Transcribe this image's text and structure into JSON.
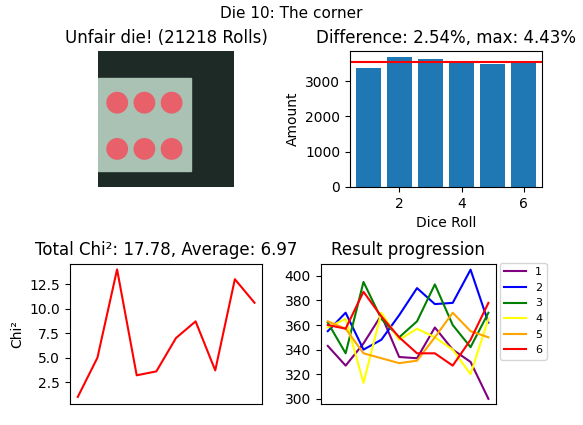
{
  "title": "Die 10: The corner",
  "chart_data": [
    {
      "type": "image",
      "title": "Unfair die! (21218 Rolls)"
    },
    {
      "type": "bar",
      "title": "Difference: 2.54%, max: 4.43%",
      "x": [
        1,
        2,
        3,
        4,
        5,
        6
      ],
      "values": [
        3380,
        3680,
        3620,
        3500,
        3480,
        3540
      ],
      "color": "#1f77b4",
      "reference_value": 3536,
      "reference_color": "red",
      "x_label": "Dice Roll",
      "y_label": "Amount",
      "xlim": [
        0.4,
        6.6
      ],
      "xticks": [
        2,
        4,
        6
      ],
      "ylim": [
        0,
        3850
      ],
      "yticks": [
        0,
        1000,
        2000,
        3000
      ]
    },
    {
      "type": "line",
      "title": "Total Chi²: 17.78, Average: 6.97",
      "y_label": "Chi²",
      "x": [
        0,
        1,
        2,
        3,
        4,
        5,
        6,
        7,
        8,
        9
      ],
      "values": [
        1.0,
        5.0,
        14.0,
        3.2,
        3.6,
        7.0,
        8.7,
        3.7,
        13.0,
        10.6
      ],
      "color": "red",
      "xlim": [
        -0.4,
        9.4
      ],
      "ylim": [
        0.3,
        14.6
      ],
      "yticks": [
        2.5,
        5.0,
        7.5,
        10.0,
        12.5
      ],
      "tick_labels": "y"
    },
    {
      "type": "line",
      "title": "Result progression",
      "x": [
        0,
        1,
        2,
        3,
        4,
        5,
        6,
        7,
        8,
        9
      ],
      "xlim": [
        -0.4,
        9.4
      ],
      "ylim": [
        296,
        410
      ],
      "yticks": [
        300,
        320,
        340,
        360,
        380,
        400
      ],
      "tick_labels": "y",
      "legend": "upper left",
      "series": [
        {
          "name": "1",
          "color": "purple",
          "values": [
            343,
            327,
            345,
            368,
            334,
            333,
            358,
            340,
            330,
            300
          ]
        },
        {
          "name": "2",
          "color": "blue",
          "values": [
            355,
            370,
            340,
            348,
            368,
            390,
            377,
            378,
            405,
            362
          ]
        },
        {
          "name": "3",
          "color": "green",
          "values": [
            362,
            337,
            395,
            365,
            350,
            363,
            393,
            360,
            342,
            370
          ]
        },
        {
          "name": "4",
          "color": "yellow",
          "values": [
            358,
            365,
            313,
            370,
            348,
            357,
            350,
            340,
            320,
            365
          ]
        },
        {
          "name": "5",
          "color": "orange",
          "values": [
            363,
            357,
            337,
            333,
            329,
            331,
            350,
            370,
            355,
            350
          ]
        },
        {
          "name": "6",
          "color": "red",
          "values": [
            360,
            357,
            387,
            367,
            350,
            337,
            337,
            327,
            348,
            378
          ]
        }
      ]
    }
  ]
}
